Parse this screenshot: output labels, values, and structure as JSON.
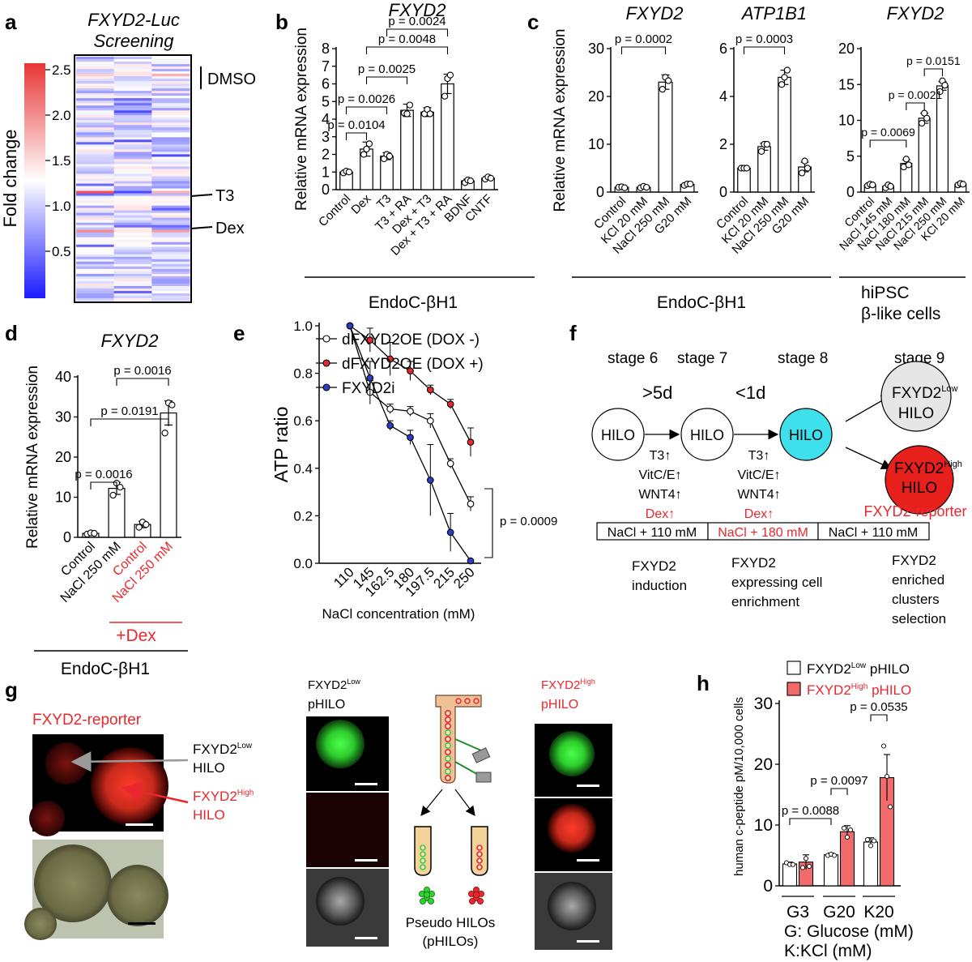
{
  "panel_labels": {
    "a": "a",
    "b": "b",
    "c": "c",
    "d": "d",
    "e": "e",
    "f": "f",
    "g": "g",
    "h": "h"
  },
  "panel_a": {
    "title_line1": "FXYD2-Luc",
    "title_line2": "Screening",
    "colorbar_label": "Fold change",
    "colorbar_ticks": [
      "2.5",
      "2.0",
      "1.5",
      "1.0",
      "0.5"
    ],
    "markers": [
      "DMSO",
      "T3",
      "Dex"
    ]
  },
  "panel_c_groups": {
    "endoc": "EndoC-βH1",
    "hipsc_line1": "hiPSC",
    "hipsc_line2": "β-like cells"
  },
  "panel_d_group": {
    "treatment": "+Dex",
    "cell_line": "EndoC-βH1"
  },
  "panel_f": {
    "stages": [
      "stage 6",
      "stage 7",
      "stage 8",
      "stage 9"
    ],
    "arrows": [
      ">5d",
      "<1d"
    ],
    "circle_label": "HILO",
    "low_label": "FXYD2",
    "low_sup": "Low",
    "high_label": "FXYD2",
    "high_sup": "High",
    "reporter": "FXYD2-reporter",
    "step1_factors": [
      "T3↑",
      "VitC/E↑",
      "WNT4↑"
    ],
    "step1_red": "Dex↑",
    "step2_factors": [
      "T3↑",
      "VitC/E↑",
      "WNT4↑"
    ],
    "step2_red": "Dex↑",
    "nacl_boxes": [
      "NaCl + 110 mM",
      "NaCl + 180 mM",
      "NaCl + 110 mM"
    ],
    "desc1": [
      "FXYD2",
      "induction"
    ],
    "desc2": [
      "FXYD2",
      "expressing cell",
      "enrichment"
    ],
    "desc3": [
      "FXYD2",
      "enriched",
      "clusters",
      "selection"
    ]
  },
  "panel_g": {
    "reporter_title": "FXYD2-reporter",
    "low_label": "FXYD2",
    "low_sup": "Low",
    "low_label2": "HILO",
    "high_label": "FXYD2",
    "high_sup": "High",
    "high_label2": "HILO",
    "sort_low": "FXYD2",
    "sort_low_sup": "Low",
    "sort_low_2": "pHILO",
    "sort_high": "FXYD2",
    "sort_high_sup": "High",
    "sort_high_2": "pHILO",
    "pseudo_line1": "Pseudo HILOs",
    "pseudo_line2": "(pHILOs)"
  },
  "chart_data": [
    {
      "panel": "b",
      "type": "bar",
      "title": "FXYD2",
      "ylabel": "Relative mRNA expression",
      "ylim": [
        0,
        8
      ],
      "yticks": [
        "0",
        "1",
        "2",
        "3",
        "4",
        "5",
        "6",
        "7",
        "8"
      ],
      "categories": [
        "Control",
        "Dex",
        "T3",
        "T3 + RA",
        "Dex + T3",
        "Dex + T3 + RA",
        "BDNF",
        "CNTF"
      ],
      "values": [
        1.0,
        2.3,
        1.9,
        4.5,
        4.4,
        6.0,
        0.5,
        0.65
      ],
      "errors": [
        0.05,
        0.4,
        0.2,
        0.35,
        0.25,
        0.55,
        0.1,
        0.08
      ],
      "points": [
        [
          0.95,
          1.05,
          1.0
        ],
        [
          2.0,
          2.3,
          2.6
        ],
        [
          1.75,
          2.0,
          1.9
        ],
        [
          4.35,
          4.3,
          4.8
        ],
        [
          4.3,
          4.55,
          4.3
        ],
        [
          5.3,
          6.3,
          6.5
        ],
        [
          0.4,
          0.55,
          0.5
        ],
        [
          0.6,
          0.72,
          0.65
        ]
      ],
      "comparisons": [
        {
          "a": 0,
          "b": 1,
          "p": "p = 0.0104"
        },
        {
          "a": 0,
          "b": 2,
          "p": "p = 0.0026"
        },
        {
          "a": 1,
          "b": 3,
          "p": "p = 0.0025"
        },
        {
          "a": 1,
          "b": 5,
          "p": "p = 0.0048"
        },
        {
          "a": 2,
          "b": 5,
          "p": "p = 0.0024"
        }
      ],
      "group": "EndoC-βH1"
    },
    {
      "panel": "c1",
      "type": "bar",
      "title": "FXYD2",
      "ylabel": "Relative mRNA expression",
      "ylim": [
        0,
        30
      ],
      "yticks": [
        "0",
        "10",
        "20",
        "30"
      ],
      "categories": [
        "Control",
        "KCl 20 mM",
        "NaCl 250 mM",
        "G20 mM"
      ],
      "values": [
        1.0,
        1.0,
        23.0,
        1.6
      ],
      "errors": [
        0.1,
        0.2,
        1.5,
        0.3
      ],
      "points": [
        [
          1.0,
          1.1,
          0.9
        ],
        [
          0.9,
          1.2,
          1.0
        ],
        [
          21.5,
          24.0,
          23.3
        ],
        [
          1.4,
          1.7,
          1.7
        ]
      ],
      "comparisons": [
        {
          "a": 0,
          "b": 2,
          "p": "p = 0.0002"
        }
      ]
    },
    {
      "panel": "c2",
      "type": "bar",
      "title": "ATP1B1",
      "ylim": [
        0,
        6
      ],
      "yticks": [
        "0",
        "2",
        "4",
        "6"
      ],
      "categories": [
        "Control",
        "KCl 20 mM",
        "NaCl 250 mM",
        "G20 mM"
      ],
      "values": [
        1.0,
        1.9,
        4.8,
        1.05
      ],
      "errors": [
        0.03,
        0.15,
        0.3,
        0.2
      ],
      "points": [
        [
          1.0,
          1.0,
          1.0
        ],
        [
          1.7,
          2.0,
          2.0
        ],
        [
          4.5,
          4.8,
          5.1
        ],
        [
          0.8,
          1.3,
          1.0
        ]
      ],
      "comparisons": [
        {
          "a": 0,
          "b": 2,
          "p": "p = 0.0003"
        }
      ]
    },
    {
      "panel": "c3",
      "type": "bar",
      "title": "FXYD2",
      "ylim": [
        0,
        20
      ],
      "yticks": [
        "0",
        "5",
        "10",
        "15",
        "20"
      ],
      "categories": [
        "Control",
        "NaCl 145 mM",
        "NaCl 180 mM",
        "NaCl 215 mM",
        "NaCl 250 mM",
        "KCl 20 mM"
      ],
      "values": [
        1.0,
        0.8,
        4.0,
        10.3,
        14.8,
        1.1
      ],
      "errors": [
        0.2,
        0.2,
        0.5,
        0.7,
        0.6,
        0.15
      ],
      "points": [
        [
          0.9,
          1.1,
          1.0
        ],
        [
          0.6,
          1.0,
          0.8
        ],
        [
          3.5,
          4.6,
          3.8
        ],
        [
          9.6,
          11.0,
          10.3
        ],
        [
          14.0,
          15.5,
          14.9
        ],
        [
          1.0,
          1.2,
          1.1
        ]
      ],
      "comparisons": [
        {
          "a": 0,
          "b": 2,
          "p": "p = 0.0069"
        },
        {
          "a": 2,
          "b": 3,
          "p": "p = 0.0021"
        },
        {
          "a": 3,
          "b": 4,
          "p": "p = 0.0151"
        }
      ]
    },
    {
      "panel": "d",
      "type": "bar",
      "title": "FXYD2",
      "ylabel": "Relative mRNA expression",
      "ylim": [
        0,
        40
      ],
      "yticks": [
        "0",
        "10",
        "20",
        "30",
        "40"
      ],
      "categories": [
        "Control",
        "NaCl 250 mM",
        "Control",
        "NaCl 250 mM"
      ],
      "values": [
        1.0,
        12.2,
        3.2,
        31.0
      ],
      "errors": [
        0.1,
        1.5,
        0.8,
        3.0
      ],
      "points": [
        [
          0.8,
          1.1,
          1.0
        ],
        [
          10.5,
          13.5,
          12.5
        ],
        [
          2.5,
          3.8,
          3.2
        ],
        [
          26.0,
          33.5,
          33.0
        ]
      ],
      "comparisons": [
        {
          "a": 0,
          "b": 1,
          "p": "p = 0.0016"
        },
        {
          "a": 0,
          "b": 3,
          "p": "p = 0.0191"
        },
        {
          "a": 1,
          "b": 3,
          "p": "p = 0.0016"
        }
      ]
    },
    {
      "panel": "e",
      "type": "line",
      "ylabel": "ATP ratio",
      "xlabel": "NaCl concentration (mM)",
      "ylim": [
        0,
        1.0
      ],
      "yticks": [
        "0.0",
        "0.2",
        "0.4",
        "0.6",
        "0.8",
        "1.0"
      ],
      "x": [
        "110",
        "145",
        "162.5",
        "180",
        "197.5",
        "215",
        "250"
      ],
      "series": [
        {
          "name": "dFXYD2OE (DOX -)",
          "color": "#ffffff",
          "values": [
            1.0,
            0.72,
            0.65,
            0.64,
            0.6,
            0.42,
            0.25
          ],
          "errors": [
            0,
            0.05,
            0.02,
            0.02,
            0.03,
            0.02,
            0.03
          ]
        },
        {
          "name": "dFXYD2OE (DOX +)",
          "color": "#e8282e",
          "values": [
            1.0,
            0.94,
            0.86,
            0.81,
            0.73,
            0.67,
            0.51
          ],
          "errors": [
            0,
            0.05,
            0.07,
            0.04,
            0.02,
            0.02,
            0.06
          ]
        },
        {
          "name": "FXYD2i",
          "color": "#2a3ec9",
          "values": [
            1.0,
            0.78,
            0.58,
            0.53,
            0.35,
            0.13,
            0.01
          ],
          "errors": [
            0,
            0.07,
            0.02,
            0.03,
            0.15,
            0.08,
            0.0
          ]
        }
      ],
      "annotation": "p = 0.0009"
    },
    {
      "panel": "h",
      "type": "bar",
      "ylabel": "human c-peptide pM/10,000 cells",
      "ylim": [
        0,
        30
      ],
      "yticks": [
        "0",
        "10",
        "20",
        "30"
      ],
      "categories": [
        "G3",
        "G20",
        "K20"
      ],
      "series": [
        {
          "name": "FXYD2Low pHILO",
          "legend": "FXYD2",
          "sup": "Low",
          "legend2": " pHILO",
          "color": "#ffffff",
          "values": [
            3.6,
            5.1,
            7.2
          ],
          "errors": [
            0.3,
            0.3,
            0.7
          ],
          "points": [
            [
              3.8,
              3.5,
              3.5
            ],
            [
              5.0,
              5.2,
              5.0
            ],
            [
              7.6,
              6.6,
              7.4
            ]
          ]
        },
        {
          "name": "FXYD2High pHILO",
          "legend": "FXYD2",
          "sup": "High",
          "legend2": " pHILO",
          "color": "#f26b6b",
          "values": [
            3.9,
            8.9,
            17.8
          ],
          "errors": [
            1.2,
            1.0,
            3.8
          ],
          "points": [
            [
              3.0,
              4.5,
              3.2
            ],
            [
              9.5,
              8.0,
              9.2
            ],
            [
              23.0,
              18.0,
              13.0
            ]
          ]
        }
      ],
      "comparisons": [
        {
          "a": [
            0,
            0
          ],
          "b": [
            1,
            0
          ],
          "p": "p = 0.0088"
        },
        {
          "a": [
            1,
            0
          ],
          "b": [
            1,
            1
          ],
          "p": "p = 0.0097"
        },
        {
          "a": [
            2,
            0
          ],
          "b": [
            2,
            1
          ],
          "p": "p = 0.0535"
        }
      ],
      "xlabel_line1": "G: Glucose (mM)",
      "xlabel_line2": "K:KCl (mM)"
    }
  ]
}
